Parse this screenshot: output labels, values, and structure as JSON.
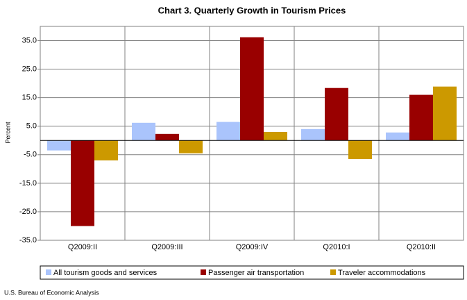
{
  "chart_data": {
    "type": "bar",
    "title": "Chart 3. Quarterly Growth in Tourism Prices",
    "y_label": "Percent",
    "categories": [
      "Q2009:II",
      "Q2009:III",
      "Q2009:IV",
      "Q2010:I",
      "Q2010:II"
    ],
    "series": [
      {
        "name": "All tourism goods and services",
        "color": "#aac4fc",
        "values": [
          -3.5,
          6.2,
          6.5,
          4.0,
          2.8
        ]
      },
      {
        "name": "Passenger air transportation",
        "color": "#990000",
        "values": [
          -30.0,
          2.3,
          36.2,
          18.4,
          16.0
        ]
      },
      {
        "name": "Traveler accommodations",
        "color": "#cc9900",
        "values": [
          -7.0,
          -4.5,
          3.0,
          -6.5,
          18.9
        ]
      }
    ],
    "ylim": [
      -35,
      40
    ],
    "yticks": [
      {
        "value": 35,
        "label": "35.0"
      },
      {
        "value": 25,
        "label": "25.0"
      },
      {
        "value": 15,
        "label": "15.0"
      },
      {
        "value": 5,
        "label": "5.0"
      },
      {
        "value": -5,
        "label": "-5.0"
      },
      {
        "value": -15,
        "label": "-15.0"
      },
      {
        "value": -25,
        "label": "-25.0"
      },
      {
        "value": -35,
        "label": "-35.0"
      }
    ],
    "grid": true,
    "legend": "bottom",
    "source": "U.S. Bureau of Economic Analysis"
  }
}
